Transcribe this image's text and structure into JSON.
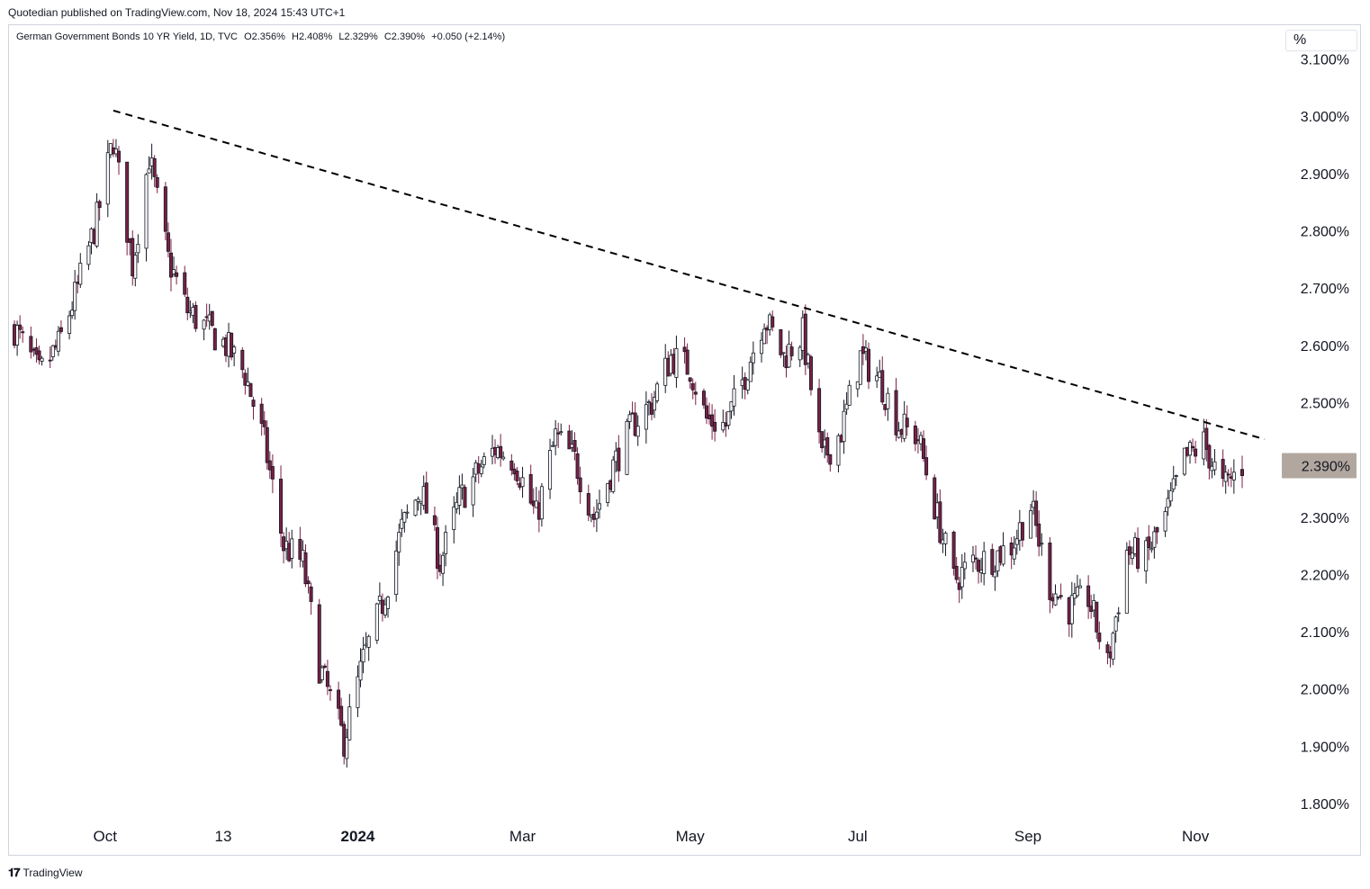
{
  "publisher_line": "Quotedian published on TradingView.com, Nov 18, 2024 15:43 UTC+1",
  "legend": {
    "symbol": "German Government Bonds 10 YR Yield, 1D, TVC",
    "open": "O2.356%",
    "high": "H2.408%",
    "low": "L2.329%",
    "close": "C2.390%",
    "change": "+0.050 (+2.14%)"
  },
  "scale_button": "%",
  "footer": {
    "logo_icon": "tradingview-logo-icon",
    "brand": "TradingView"
  },
  "colors": {
    "up": "#ffffff",
    "down": "#7a1f45",
    "wick": "#131722",
    "trendline": "#000000",
    "last_price_bg": "#b2a79e"
  },
  "chart_data": {
    "type": "candlestick",
    "title": "German Government Bonds 10 YR Yield, 1D, TVC",
    "ylim": [
      1.76,
      3.13
    ],
    "y_ticks": [
      "3.100%",
      "3.000%",
      "2.900%",
      "2.800%",
      "2.700%",
      "2.600%",
      "2.500%",
      "2.300%",
      "2.200%",
      "2.100%",
      "2.000%",
      "1.900%",
      "1.800%"
    ],
    "y_tick_values": [
      3.1,
      3.0,
      2.9,
      2.8,
      2.7,
      2.6,
      2.5,
      2.3,
      2.2,
      2.1,
      2.0,
      1.9,
      1.8
    ],
    "x_ticks": [
      {
        "label": "Oct",
        "date": "2023-10-01",
        "bold": false
      },
      {
        "label": "13",
        "date": "2023-11-13",
        "bold": false
      },
      {
        "label": "2024",
        "date": "2024-01-01",
        "bold": true
      },
      {
        "label": "Mar",
        "date": "2024-03-01",
        "bold": false
      },
      {
        "label": "May",
        "date": "2024-05-01",
        "bold": false
      },
      {
        "label": "Jul",
        "date": "2024-07-01",
        "bold": false
      },
      {
        "label": "Sep",
        "date": "2024-09-01",
        "bold": false
      },
      {
        "label": "Nov",
        "date": "2024-11-01",
        "bold": false
      }
    ],
    "last_price": {
      "label": "2.390%",
      "value": 2.39
    },
    "trendline": {
      "from": {
        "date": "2023-10-04",
        "value": 3.01
      },
      "to": {
        "date": "2024-11-18",
        "value": 2.43
      },
      "style": "dashed"
    },
    "close_path": [
      [
        "2023-08-29",
        2.63
      ],
      [
        "2023-09-07",
        2.55
      ],
      [
        "2023-09-14",
        2.6
      ],
      [
        "2023-09-21",
        2.7
      ],
      [
        "2023-09-28",
        2.82
      ],
      [
        "2023-10-04",
        2.96
      ],
      [
        "2023-10-11",
        2.74
      ],
      [
        "2023-10-17",
        2.93
      ],
      [
        "2023-10-24",
        2.75
      ],
      [
        "2023-10-31",
        2.66
      ],
      [
        "2023-11-07",
        2.63
      ],
      [
        "2023-11-14",
        2.6
      ],
      [
        "2023-11-21",
        2.55
      ],
      [
        "2023-11-28",
        2.43
      ],
      [
        "2023-12-05",
        2.25
      ],
      [
        "2023-12-12",
        2.22
      ],
      [
        "2023-12-18",
        2.04
      ],
      [
        "2023-12-27",
        1.91
      ],
      [
        "2024-01-03",
        2.05
      ],
      [
        "2024-01-10",
        2.15
      ],
      [
        "2024-01-17",
        2.28
      ],
      [
        "2024-01-24",
        2.35
      ],
      [
        "2024-01-31",
        2.22
      ],
      [
        "2024-02-07",
        2.33
      ],
      [
        "2024-02-14",
        2.38
      ],
      [
        "2024-02-20",
        2.42
      ],
      [
        "2024-02-27",
        2.4
      ],
      [
        "2024-03-06",
        2.3
      ],
      [
        "2024-03-13",
        2.44
      ],
      [
        "2024-03-20",
        2.4
      ],
      [
        "2024-03-27",
        2.3
      ],
      [
        "2024-04-03",
        2.39
      ],
      [
        "2024-04-10",
        2.46
      ],
      [
        "2024-04-17",
        2.5
      ],
      [
        "2024-04-24",
        2.58
      ],
      [
        "2024-05-01",
        2.56
      ],
      [
        "2024-05-07",
        2.47
      ],
      [
        "2024-05-14",
        2.46
      ],
      [
        "2024-05-21",
        2.55
      ],
      [
        "2024-05-28",
        2.65
      ],
      [
        "2024-06-04",
        2.58
      ],
      [
        "2024-06-11",
        2.62
      ],
      [
        "2024-06-18",
        2.4
      ],
      [
        "2024-06-25",
        2.45
      ],
      [
        "2024-07-02",
        2.58
      ],
      [
        "2024-07-09",
        2.54
      ],
      [
        "2024-07-16",
        2.46
      ],
      [
        "2024-07-23",
        2.44
      ],
      [
        "2024-07-30",
        2.3
      ],
      [
        "2024-08-05",
        2.19
      ],
      [
        "2024-08-12",
        2.22
      ],
      [
        "2024-08-19",
        2.23
      ],
      [
        "2024-08-26",
        2.25
      ],
      [
        "2024-09-02",
        2.32
      ],
      [
        "2024-09-09",
        2.18
      ],
      [
        "2024-09-16",
        2.14
      ],
      [
        "2024-09-23",
        2.16
      ],
      [
        "2024-09-30",
        2.04
      ],
      [
        "2024-10-07",
        2.24
      ],
      [
        "2024-10-14",
        2.23
      ],
      [
        "2024-10-21",
        2.3
      ],
      [
        "2024-10-28",
        2.4
      ],
      [
        "2024-11-04",
        2.43
      ],
      [
        "2024-11-11",
        2.35
      ],
      [
        "2024-11-18",
        2.39
      ]
    ]
  }
}
